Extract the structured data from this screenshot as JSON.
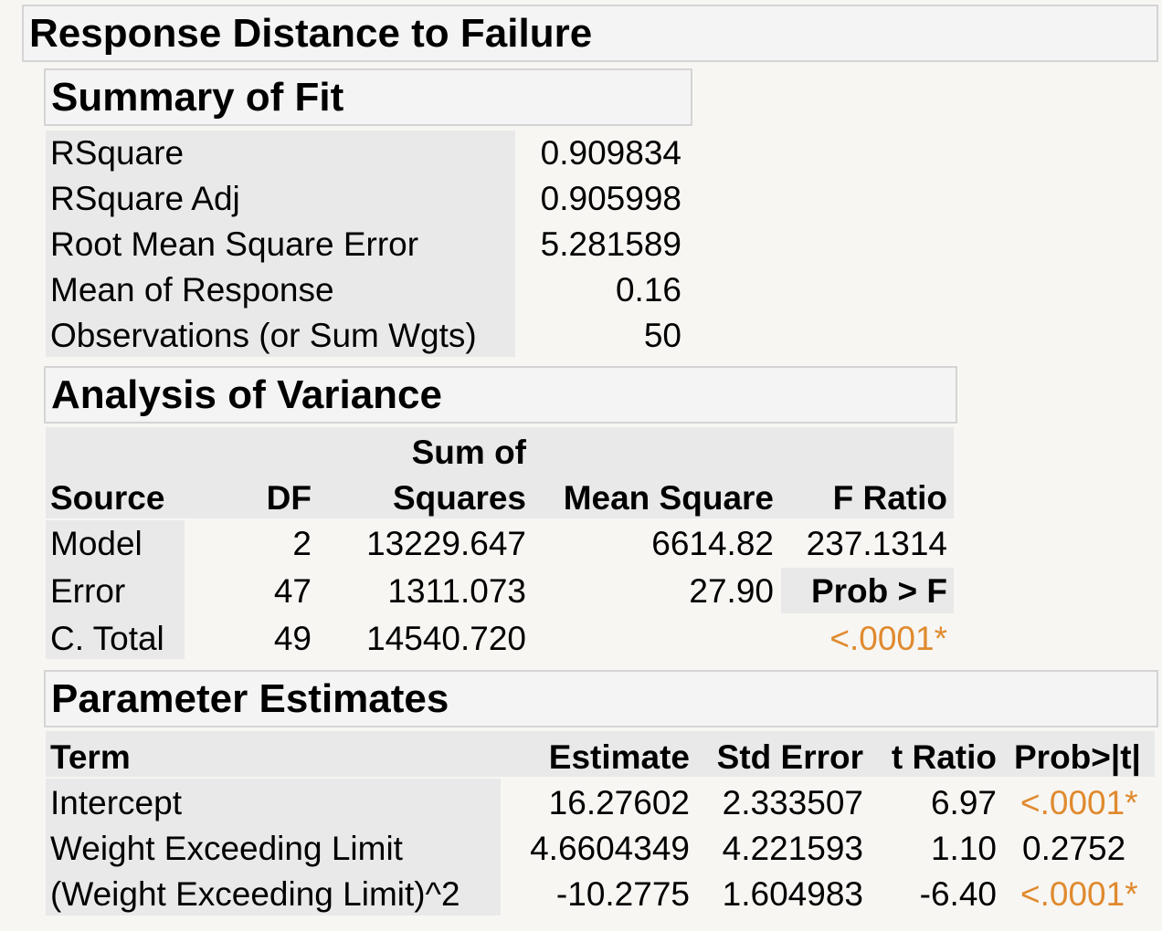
{
  "title": "Response Distance to Failure",
  "summary_of_fit": {
    "heading": "Summary of Fit",
    "rows": [
      {
        "label": "RSquare",
        "value": "0.909834"
      },
      {
        "label": "RSquare Adj",
        "value": "0.905998"
      },
      {
        "label": "Root Mean Square Error",
        "value": "5.281589"
      },
      {
        "label": "Mean of Response",
        "value": "0.16"
      },
      {
        "label": "Observations (or Sum Wgts)",
        "value": "50"
      }
    ]
  },
  "anova": {
    "heading": "Analysis of Variance",
    "headers": {
      "source": "Source",
      "df": "DF",
      "ss_top": "Sum of",
      "ss_bottom": "Squares",
      "ms": "Mean Square",
      "f": "F Ratio",
      "prob": "Prob > F"
    },
    "rows": [
      {
        "source": "Model",
        "df": "2",
        "ss": "13229.647",
        "ms": "6614.82",
        "extra": "237.1314"
      },
      {
        "source": "Error",
        "df": "47",
        "ss": "1311.073",
        "ms": "27.90",
        "extra": ""
      },
      {
        "source": "C. Total",
        "df": "49",
        "ss": "14540.720",
        "ms": "",
        "extra": "<.0001*"
      }
    ]
  },
  "parameter_estimates": {
    "heading": "Parameter Estimates",
    "headers": {
      "term": "Term",
      "estimate": "Estimate",
      "std_error": "Std Error",
      "t_ratio": "t Ratio",
      "prob": "Prob>|t|"
    },
    "rows": [
      {
        "term": "Intercept",
        "estimate": "16.27602",
        "std_error": "2.333507",
        "t_ratio": "6.97",
        "prob": "<.0001*",
        "significant": true
      },
      {
        "term": "Weight Exceeding Limit",
        "estimate": "4.6604349",
        "std_error": "4.221593",
        "t_ratio": "1.10",
        "prob": "0.2752",
        "significant": false
      },
      {
        "term": "(Weight Exceeding Limit)^2",
        "estimate": "-10.2775",
        "std_error": "1.604983",
        "t_ratio": "-6.40",
        "prob": "<.0001*",
        "significant": true
      }
    ]
  },
  "colors": {
    "significant": "#e08a2e",
    "header_bg": "#f4f4f4",
    "label_bg": "#e9e9e9"
  }
}
